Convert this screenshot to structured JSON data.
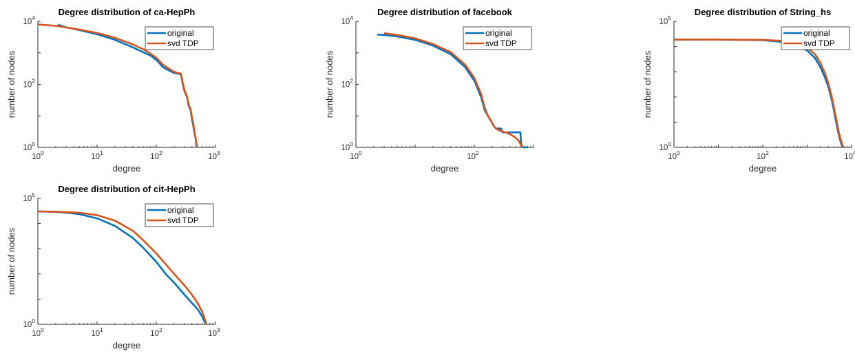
{
  "chart_data": [
    {
      "type": "line",
      "title": "Degree distribution of ca-HepPh",
      "xlabel": "degree",
      "ylabel": "number of nodes",
      "xscale": "log",
      "yscale": "log",
      "xlim": [
        1,
        1000
      ],
      "ylim": [
        1,
        10000
      ],
      "xticks": [
        {
          "base": "10",
          "exp": "0"
        },
        {
          "base": "10",
          "exp": "1"
        },
        {
          "base": "10",
          "exp": "2"
        },
        {
          "base": "10",
          "exp": "3"
        }
      ],
      "yticks": [
        {
          "base": "10",
          "exp": "0"
        },
        {
          "base": "10",
          "exp": "2"
        },
        {
          "base": "10",
          "exp": "4"
        }
      ],
      "legend_position": "top-right",
      "series": [
        {
          "name": "original",
          "color": "#0072BD",
          "x": [
            2.2,
            3,
            5,
            10,
            20,
            40,
            60,
            80,
            100,
            130,
            160,
            200,
            230,
            260,
            280,
            300,
            330,
            350,
            380,
            400,
            420,
            440,
            460,
            480
          ],
          "y": [
            7800,
            6500,
            5300,
            3900,
            2600,
            1500,
            1050,
            820,
            600,
            350,
            280,
            230,
            220,
            210,
            100,
            60,
            40,
            22,
            15,
            8,
            5,
            3,
            2,
            1
          ]
        },
        {
          "name": "svd TDP",
          "color": "#D95319",
          "x": [
            1,
            2,
            3,
            5,
            10,
            20,
            40,
            60,
            80,
            100,
            130,
            160,
            200,
            230,
            260,
            280,
            300,
            330,
            350,
            380,
            400,
            420,
            440,
            460,
            490
          ],
          "y": [
            8000,
            7200,
            6400,
            5500,
            4300,
            3000,
            1850,
            1300,
            950,
            700,
            420,
            320,
            250,
            230,
            220,
            110,
            65,
            42,
            24,
            16,
            9,
            6,
            3.5,
            2,
            1
          ]
        }
      ]
    },
    {
      "type": "line",
      "title": "Degree distribution of facebook",
      "xlabel": "degree",
      "ylabel": "number of nodes",
      "xscale": "log",
      "yscale": "log",
      "xlim": [
        1,
        1000
      ],
      "ylim": [
        1,
        10000
      ],
      "xticks": [
        {
          "base": "10",
          "exp": "0"
        },
        {
          "base": "10",
          "exp": "2"
        }
      ],
      "yticks": [
        {
          "base": "10",
          "exp": "0"
        },
        {
          "base": "10",
          "exp": "2"
        },
        {
          "base": "10",
          "exp": "4"
        }
      ],
      "legend_position": "top-right",
      "series": [
        {
          "name": "original",
          "color": "#0072BD",
          "x": [
            2.3,
            3,
            5,
            10,
            20,
            40,
            70,
            100,
            130,
            150,
            170,
            190,
            210,
            230,
            280,
            300,
            320,
            400,
            500,
            600,
            620,
            650,
            700,
            800
          ],
          "y": [
            3800,
            3700,
            3300,
            2600,
            1700,
            900,
            350,
            130,
            40,
            15,
            10,
            7,
            5,
            4,
            4,
            3,
            3,
            3,
            3,
            3,
            1.3,
            1,
            1,
            1
          ]
        },
        {
          "name": "svd TDP",
          "color": "#D95319",
          "x": [
            3,
            5,
            10,
            20,
            40,
            70,
            100,
            130,
            150,
            170,
            190,
            210,
            230,
            260,
            300,
            350,
            400,
            450,
            500,
            550,
            600,
            650
          ],
          "y": [
            4200,
            3700,
            2900,
            1900,
            1050,
            420,
            160,
            50,
            18,
            10,
            7,
            5,
            4,
            3.5,
            3.2,
            2.9,
            2.6,
            2.3,
            2,
            1.7,
            1.3,
            1
          ]
        }
      ]
    },
    {
      "type": "line",
      "title": "Degree distribution of String_hs",
      "xlabel": "degree",
      "ylabel": "number of nodes",
      "xscale": "log",
      "yscale": "log",
      "xlim": [
        1,
        10000
      ],
      "ylim": [
        1,
        100000
      ],
      "xticks": [
        {
          "base": "10",
          "exp": "0"
        },
        {
          "base": "10",
          "exp": "2"
        },
        {
          "base": "10",
          "exp": "4"
        }
      ],
      "yticks": [
        {
          "base": "10",
          "exp": "0"
        },
        {
          "base": "10",
          "exp": "5"
        }
      ],
      "legend_position": "top-right",
      "series": [
        {
          "name": "original",
          "color": "#0072BD",
          "x": [
            1,
            10,
            100,
            300,
            600,
            1000,
            1500,
            2000,
            2500,
            3000,
            3500,
            4000,
            4500,
            5000,
            5500,
            6000,
            6500
          ],
          "y": [
            19000,
            18900,
            18000,
            15000,
            11000,
            7000,
            3500,
            1500,
            600,
            250,
            90,
            30,
            10,
            4,
            2,
            1.2,
            1
          ]
        },
        {
          "name": "svd TDP",
          "color": "#D95319",
          "x": [
            1,
            10,
            100,
            300,
            600,
            1000,
            1500,
            2000,
            2500,
            3000,
            3500,
            4000,
            4500,
            5000,
            5500,
            6000,
            6500
          ],
          "y": [
            19000,
            19000,
            18500,
            16500,
            13000,
            9000,
            5000,
            2200,
            900,
            350,
            120,
            40,
            14,
            5,
            2.5,
            1.5,
            1
          ]
        }
      ]
    },
    {
      "type": "line",
      "title": "Degree distribution of cit-HepPh",
      "xlabel": "degree",
      "ylabel": "number of nodes",
      "xscale": "log",
      "yscale": "log",
      "xlim": [
        1,
        1000
      ],
      "ylim": [
        1,
        100000
      ],
      "xticks": [
        {
          "base": "10",
          "exp": "0"
        },
        {
          "base": "10",
          "exp": "1"
        },
        {
          "base": "10",
          "exp": "2"
        },
        {
          "base": "10",
          "exp": "3"
        }
      ],
      "yticks": [
        {
          "base": "10",
          "exp": "0"
        },
        {
          "base": "10",
          "exp": "5"
        }
      ],
      "legend_position": "top-right",
      "series": [
        {
          "name": "original",
          "color": "#0072BD",
          "x": [
            1,
            2,
            3,
            5,
            10,
            20,
            40,
            60,
            100,
            150,
            200,
            300,
            400,
            500,
            600,
            650,
            700
          ],
          "y": [
            30000,
            29000,
            27000,
            23500,
            16000,
            8000,
            2700,
            1100,
            300,
            90,
            45,
            15,
            7,
            4,
            2,
            1.3,
            1
          ]
        },
        {
          "name": "svd TDP",
          "color": "#D95319",
          "x": [
            1,
            2,
            3,
            5,
            10,
            20,
            40,
            60,
            100,
            150,
            200,
            300,
            400,
            500,
            600,
            650,
            700
          ],
          "y": [
            30000,
            29500,
            28500,
            26500,
            21500,
            13000,
            5200,
            2200,
            650,
            220,
            100,
            35,
            15,
            7,
            3,
            1.8,
            1
          ]
        }
      ]
    }
  ]
}
